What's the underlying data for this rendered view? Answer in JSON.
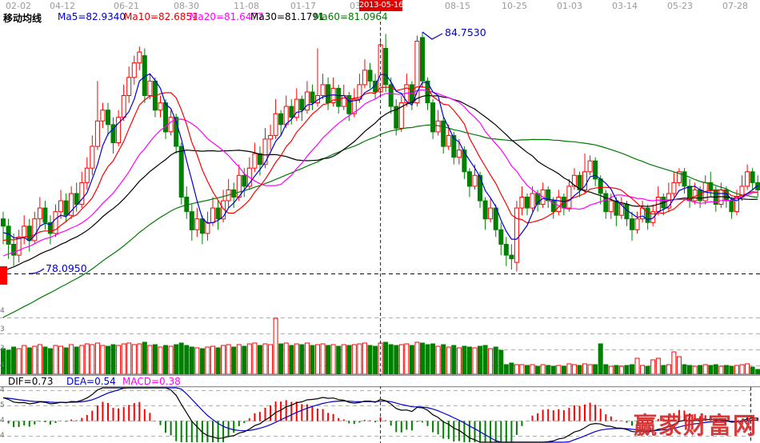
{
  "header": {
    "dates": [
      "02-02",
      "04-12",
      "06-21",
      "08-30",
      "11-08",
      "01-17",
      "03-28",
      "08-15",
      "10-25",
      "01-03",
      "03-14",
      "05-23",
      "07-28"
    ],
    "selected_date": "2013-05-16"
  },
  "ma_panel": {
    "title": "移动均线",
    "items": [
      {
        "label": "Ma5=82.9340",
        "color": "#0000cc"
      },
      {
        "label": "Ma10=82.6851",
        "color": "#e00000"
      },
      {
        "label": "Ma20=81.6477",
        "color": "#ff00ff"
      },
      {
        "label": "Ma30=81.1791",
        "color": "#000000"
      },
      {
        "label": "Ma60=81.0964",
        "color": "#007a00"
      }
    ]
  },
  "annotations": {
    "peak_price": "84.7530",
    "support_price": "78.0950"
  },
  "volume_axis": [
    "4",
    "3",
    "3",
    "4"
  ],
  "macd_panel": {
    "dif_label": "DIF=0.73",
    "dea_label": "DEA=0.54",
    "macd_label": "MACD=0.38",
    "axis": [
      "4",
      "5",
      "4",
      "4"
    ]
  },
  "watermark": "赢家财富网",
  "colors": {
    "up": "#ff0000",
    "down": "#008000",
    "ma5": "#0000dd",
    "ma10": "#ff0000",
    "ma20": "#ff00ff",
    "ma30": "#000000",
    "ma60": "#007a00",
    "dif_line": "#000000",
    "dea_line": "#0000cc",
    "selected_date_bg": "#e00000",
    "grid": "#b0b0b0",
    "cursor": "#222222",
    "annotation_text": "#0000cc",
    "watermark": "#d42a2a"
  },
  "chart_data": {
    "type": "candlestick",
    "title": "移动均线 (moving-average K-line chart with volume and MACD panels)",
    "price_refs": {
      "peak_high": 84.753,
      "support_level": 78.095
    },
    "cursor_index": 72,
    "peak_index": 80,
    "ma_periods": [
      5,
      10,
      20,
      30,
      60
    ],
    "macd_params": [
      12,
      26,
      9
    ],
    "offscreen_seed": {
      "start": 74.3,
      "end": 79.3,
      "n": 60
    },
    "candles": [
      [
        79.6,
        79.8,
        78.9,
        79.4,
        32
      ],
      [
        79.4,
        79.6,
        78.5,
        78.9,
        30
      ],
      [
        78.9,
        79.2,
        78.3,
        78.6,
        34
      ],
      [
        78.6,
        79.3,
        78.4,
        79.1,
        32
      ],
      [
        79.1,
        79.7,
        78.9,
        79.4,
        36
      ],
      [
        79.4,
        79.6,
        78.7,
        79.0,
        33
      ],
      [
        79.0,
        79.8,
        78.9,
        79.6,
        35
      ],
      [
        79.6,
        80.2,
        79.4,
        79.9,
        37
      ],
      [
        79.9,
        80.1,
        79.3,
        79.5,
        34
      ],
      [
        79.5,
        79.7,
        78.9,
        79.2,
        32
      ],
      [
        79.2,
        80.0,
        79.1,
        79.8,
        36
      ],
      [
        79.8,
        80.4,
        79.6,
        80.1,
        35
      ],
      [
        80.1,
        80.3,
        79.5,
        79.7,
        33
      ],
      [
        79.7,
        80.5,
        79.6,
        80.3,
        37
      ],
      [
        80.3,
        80.6,
        79.8,
        80.0,
        34
      ],
      [
        80.0,
        80.9,
        79.9,
        80.6,
        36
      ],
      [
        80.6,
        81.3,
        80.4,
        81.0,
        38
      ],
      [
        81.0,
        81.9,
        80.8,
        81.6,
        37
      ],
      [
        81.6,
        83.4,
        81.5,
        82.3,
        39
      ],
      [
        82.3,
        82.8,
        82.1,
        82.6,
        36
      ],
      [
        82.6,
        82.8,
        81.9,
        82.2,
        35
      ],
      [
        82.2,
        82.4,
        81.4,
        81.7,
        37
      ],
      [
        81.7,
        82.6,
        81.6,
        82.4,
        36
      ],
      [
        82.4,
        83.3,
        82.3,
        83.0,
        38
      ],
      [
        83.0,
        83.8,
        82.8,
        83.5,
        39
      ],
      [
        83.5,
        84.1,
        83.3,
        83.9,
        37
      ],
      [
        83.9,
        84.35,
        83.7,
        84.2,
        38
      ],
      [
        84.1,
        84.3,
        82.8,
        83.0,
        40
      ],
      [
        83.0,
        83.6,
        82.9,
        83.4,
        36
      ],
      [
        83.4,
        83.5,
        82.4,
        82.6,
        37
      ],
      [
        82.6,
        83.0,
        82.4,
        82.8,
        34
      ],
      [
        82.8,
        82.9,
        81.8,
        82.0,
        36
      ],
      [
        82.0,
        82.6,
        81.9,
        82.4,
        35
      ],
      [
        82.4,
        82.5,
        81.4,
        81.6,
        37
      ],
      [
        81.6,
        81.7,
        80.0,
        80.2,
        39
      ],
      [
        80.2,
        80.5,
        79.6,
        79.8,
        36
      ],
      [
        79.8,
        80.0,
        79.0,
        79.3,
        34
      ],
      [
        79.3,
        79.9,
        79.1,
        79.6,
        33
      ],
      [
        79.6,
        79.7,
        78.9,
        79.2,
        32
      ],
      [
        79.2,
        79.8,
        79.0,
        79.5,
        34
      ],
      [
        79.5,
        80.2,
        79.4,
        79.9,
        35
      ],
      [
        79.9,
        80.1,
        79.3,
        79.6,
        33
      ],
      [
        79.6,
        80.4,
        79.5,
        80.1,
        36
      ],
      [
        80.1,
        80.7,
        79.9,
        80.4,
        37
      ],
      [
        80.4,
        80.6,
        79.9,
        80.2,
        34
      ],
      [
        80.2,
        81.1,
        80.1,
        80.8,
        37
      ],
      [
        80.8,
        81.0,
        80.2,
        80.5,
        35
      ],
      [
        80.5,
        81.3,
        80.4,
        81.0,
        38
      ],
      [
        81.0,
        81.7,
        80.9,
        81.4,
        39
      ],
      [
        81.4,
        81.6,
        80.8,
        81.1,
        36
      ],
      [
        81.1,
        82.1,
        81.0,
        81.8,
        38
      ],
      [
        81.8,
        82.2,
        81.5,
        81.9,
        37
      ],
      [
        81.9,
        82.9,
        81.8,
        82.5,
        70
      ],
      [
        82.5,
        82.6,
        81.9,
        82.2,
        38
      ],
      [
        82.2,
        83.0,
        82.1,
        82.7,
        39
      ],
      [
        82.7,
        82.9,
        82.2,
        82.4,
        36
      ],
      [
        82.4,
        83.2,
        82.3,
        82.9,
        38
      ],
      [
        82.9,
        83.0,
        82.3,
        82.6,
        37
      ],
      [
        82.6,
        83.4,
        82.5,
        83.1,
        39
      ],
      [
        83.1,
        83.3,
        82.6,
        82.8,
        36
      ],
      [
        82.8,
        84.3,
        82.7,
        83.0,
        37
      ],
      [
        83.0,
        83.6,
        82.9,
        83.3,
        38
      ],
      [
        83.3,
        83.5,
        82.6,
        82.8,
        36
      ],
      [
        82.8,
        83.5,
        82.7,
        83.2,
        37
      ],
      [
        83.2,
        83.3,
        82.5,
        82.7,
        35
      ],
      [
        82.7,
        83.3,
        82.6,
        83.0,
        37
      ],
      [
        83.0,
        83.1,
        82.3,
        82.5,
        36
      ],
      [
        82.5,
        83.2,
        82.4,
        82.9,
        37
      ],
      [
        82.9,
        83.6,
        82.8,
        83.3,
        38
      ],
      [
        83.3,
        84.0,
        83.2,
        83.7,
        39
      ],
      [
        83.7,
        83.9,
        83.2,
        83.4,
        36
      ],
      [
        83.4,
        83.6,
        82.9,
        83.1,
        35
      ],
      [
        83.1,
        84.55,
        83.0,
        84.4,
        39
      ],
      [
        84.3,
        84.7,
        83.1,
        83.3,
        40
      ],
      [
        83.3,
        83.5,
        82.5,
        82.7,
        37
      ],
      [
        82.7,
        82.9,
        81.9,
        82.1,
        36
      ],
      [
        82.1,
        83.0,
        82.0,
        82.8,
        37
      ],
      [
        82.8,
        83.6,
        82.7,
        83.3,
        38
      ],
      [
        83.3,
        83.4,
        82.6,
        82.8,
        36
      ],
      [
        82.8,
        84.65,
        82.7,
        84.5,
        40
      ],
      [
        84.6,
        84.753,
        83.2,
        83.4,
        39
      ],
      [
        83.4,
        83.5,
        82.6,
        82.8,
        37
      ],
      [
        82.8,
        82.9,
        81.8,
        82.0,
        38
      ],
      [
        82.0,
        82.6,
        81.9,
        82.3,
        35
      ],
      [
        82.3,
        82.4,
        81.4,
        81.6,
        37
      ],
      [
        81.6,
        82.2,
        81.5,
        81.9,
        34
      ],
      [
        81.9,
        82.0,
        81.1,
        81.3,
        36
      ],
      [
        81.3,
        81.8,
        81.1,
        81.5,
        33
      ],
      [
        81.5,
        81.6,
        80.7,
        80.9,
        35
      ],
      [
        80.9,
        81.0,
        80.2,
        80.5,
        34
      ],
      [
        80.5,
        81.1,
        80.4,
        80.8,
        33
      ],
      [
        80.8,
        80.9,
        79.9,
        80.1,
        35
      ],
      [
        80.1,
        80.2,
        79.3,
        79.6,
        36
      ],
      [
        79.6,
        80.2,
        79.5,
        79.9,
        32
      ],
      [
        79.9,
        80.0,
        79.1,
        79.3,
        34
      ],
      [
        79.3,
        79.5,
        78.6,
        78.9,
        30
      ],
      [
        78.9,
        79.1,
        78.3,
        78.6,
        12
      ],
      [
        78.6,
        78.9,
        78.2,
        78.5,
        14
      ],
      [
        78.4,
        80.1,
        78.15,
        79.9,
        12
      ],
      [
        79.9,
        80.5,
        79.7,
        80.2,
        12
      ],
      [
        80.2,
        80.3,
        79.7,
        79.9,
        11
      ],
      [
        79.9,
        80.5,
        79.8,
        80.3,
        12
      ],
      [
        80.3,
        80.4,
        79.8,
        80.0,
        10
      ],
      [
        80.0,
        80.6,
        79.9,
        80.4,
        12
      ],
      [
        80.4,
        80.5,
        79.9,
        80.1,
        11
      ],
      [
        80.1,
        80.2,
        79.6,
        79.8,
        10
      ],
      [
        79.8,
        80.4,
        79.7,
        80.2,
        11
      ],
      [
        80.2,
        80.3,
        79.7,
        79.9,
        10
      ],
      [
        79.9,
        80.7,
        79.8,
        80.5,
        13
      ],
      [
        80.5,
        81.0,
        80.4,
        80.8,
        12
      ],
      [
        80.8,
        80.9,
        80.2,
        80.4,
        11
      ],
      [
        80.4,
        81.4,
        80.3,
        80.9,
        13
      ],
      [
        80.9,
        81.35,
        80.8,
        81.2,
        12
      ],
      [
        81.2,
        81.3,
        80.5,
        80.7,
        12
      ],
      [
        80.7,
        80.8,
        80.0,
        80.3,
        38
      ],
      [
        80.3,
        80.4,
        79.6,
        79.8,
        12
      ],
      [
        79.8,
        80.3,
        79.6,
        80.1,
        10
      ],
      [
        80.1,
        80.2,
        79.4,
        79.7,
        11
      ],
      [
        79.7,
        80.2,
        79.6,
        80.0,
        10
      ],
      [
        80.0,
        80.1,
        79.4,
        79.6,
        11
      ],
      [
        79.6,
        79.8,
        79.0,
        79.3,
        12
      ],
      [
        79.3,
        79.8,
        79.2,
        79.6,
        20
      ],
      [
        79.6,
        80.1,
        79.5,
        79.9,
        11
      ],
      [
        79.9,
        80.0,
        79.3,
        79.5,
        10
      ],
      [
        79.5,
        80.0,
        79.4,
        79.8,
        18
      ],
      [
        79.8,
        80.5,
        79.7,
        80.2,
        20
      ],
      [
        80.2,
        80.3,
        79.7,
        79.9,
        11
      ],
      [
        79.9,
        80.6,
        79.8,
        80.3,
        12
      ],
      [
        80.3,
        80.9,
        80.2,
        80.6,
        28
      ],
      [
        80.6,
        81.0,
        80.5,
        80.9,
        22
      ],
      [
        80.9,
        81.0,
        80.3,
        80.5,
        12
      ],
      [
        80.5,
        80.7,
        79.9,
        80.1,
        11
      ],
      [
        80.1,
        80.6,
        80.0,
        80.4,
        10
      ],
      [
        80.4,
        80.5,
        79.9,
        80.1,
        11
      ],
      [
        80.1,
        80.8,
        80.0,
        80.6,
        12
      ],
      [
        80.6,
        80.9,
        80.2,
        80.4,
        11
      ],
      [
        80.4,
        80.5,
        79.8,
        80.0,
        12
      ],
      [
        80.0,
        80.6,
        79.9,
        80.4,
        10
      ],
      [
        80.4,
        80.5,
        79.9,
        80.1,
        11
      ],
      [
        80.1,
        80.2,
        79.6,
        79.8,
        10
      ],
      [
        79.8,
        80.4,
        79.7,
        80.2,
        11
      ],
      [
        80.2,
        80.8,
        80.1,
        80.5,
        12
      ],
      [
        80.5,
        81.1,
        80.4,
        80.9,
        13
      ],
      [
        80.9,
        81.0,
        80.4,
        80.6,
        9
      ],
      [
        80.6,
        80.8,
        80.2,
        80.4,
        6
      ]
    ]
  }
}
